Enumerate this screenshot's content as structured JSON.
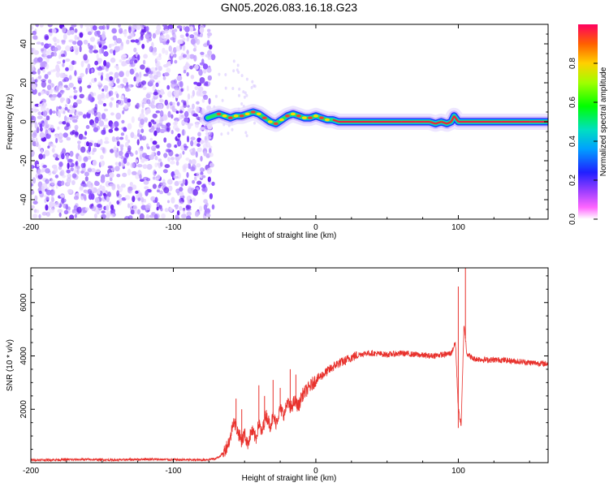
{
  "title": "GN05.2026.083.16.18.G23",
  "chart_data": [
    {
      "type": "heatmap",
      "name": "spectrogram",
      "xlabel": "Height of straight line (km)",
      "ylabel": "Frequency (Hz)",
      "xlim": [
        -200,
        163
      ],
      "ylim": [
        -50,
        50
      ],
      "x_ticks": [
        -200,
        -100,
        0,
        100
      ],
      "y_ticks": [
        -40,
        -20,
        0,
        20,
        40
      ],
      "noise_region_x": [
        -200,
        -72
      ],
      "signal_track": {
        "x": [
          -76,
          -72,
          -68,
          -64,
          -60,
          -56,
          -52,
          -48,
          -44,
          -40,
          -36,
          -32,
          -28,
          -24,
          -20,
          -16,
          -12,
          -8,
          -4,
          0,
          4,
          8,
          12,
          16,
          40,
          60,
          70,
          76,
          80,
          84,
          88,
          92,
          95,
          97,
          100,
          110,
          130,
          150,
          163
        ],
        "y": [
          2,
          3,
          4,
          3,
          2,
          3,
          3,
          4,
          5,
          4,
          2,
          0,
          -1,
          1,
          3,
          4,
          3,
          2,
          2,
          3,
          2,
          1,
          1,
          0,
          0,
          0,
          0,
          0,
          0,
          -1,
          0,
          -1,
          0,
          3,
          0,
          0,
          0,
          0,
          0
        ]
      },
      "colorbar": {
        "label": "Normalized spectral amplitude",
        "range": [
          0,
          1
        ],
        "ticks": [
          "0.0",
          "0.2",
          "0.4",
          "0.6",
          "0.8"
        ]
      }
    },
    {
      "type": "line",
      "name": "snr",
      "xlabel": "Height of straight line (km)",
      "ylabel": "SNR (10 * v/v)",
      "xlim": [
        -200,
        163
      ],
      "ylim": [
        0,
        7300
      ],
      "x_ticks": [
        -200,
        -100,
        0,
        100
      ],
      "y_ticks": [
        2000,
        4000,
        6000
      ],
      "color": "#e8312c",
      "series": {
        "x": [
          -200,
          -180,
          -160,
          -140,
          -120,
          -100,
          -80,
          -70,
          -65,
          -60,
          -58,
          -55,
          -52,
          -50,
          -48,
          -45,
          -42,
          -40,
          -38,
          -35,
          -32,
          -30,
          -28,
          -25,
          -22,
          -20,
          -18,
          -15,
          -12,
          -10,
          -5,
          0,
          5,
          10,
          15,
          20,
          25,
          30,
          35,
          40,
          50,
          60,
          70,
          80,
          90,
          95,
          98,
          100,
          102,
          104,
          106,
          110,
          120,
          130,
          140,
          150,
          163
        ],
        "y": [
          100,
          110,
          120,
          100,
          130,
          110,
          100,
          150,
          350,
          900,
          1600,
          1200,
          800,
          1100,
          700,
          1200,
          900,
          1500,
          1100,
          1800,
          1400,
          1700,
          1500,
          2000,
          1800,
          2300,
          2000,
          2300,
          2100,
          2500,
          2800,
          3100,
          3300,
          3500,
          3700,
          3800,
          3950,
          4050,
          4100,
          4100,
          4050,
          4100,
          4050,
          4000,
          4050,
          4100,
          4500,
          2000,
          1400,
          5200,
          4100,
          3900,
          3850,
          3850,
          3800,
          3750,
          3700
        ]
      },
      "spikes": [
        {
          "x": -56,
          "y": 2400
        },
        {
          "x": -52,
          "y": 2000
        },
        {
          "x": -40,
          "y": 2900
        },
        {
          "x": -36,
          "y": 2500
        },
        {
          "x": -30,
          "y": 3100
        },
        {
          "x": -25,
          "y": 2800
        },
        {
          "x": -18,
          "y": 3500
        },
        {
          "x": -14,
          "y": 3300
        },
        {
          "x": 100,
          "y": 6600
        },
        {
          "x": 105,
          "y": 7300
        },
        {
          "x": 100,
          "y": 1300
        }
      ]
    }
  ]
}
